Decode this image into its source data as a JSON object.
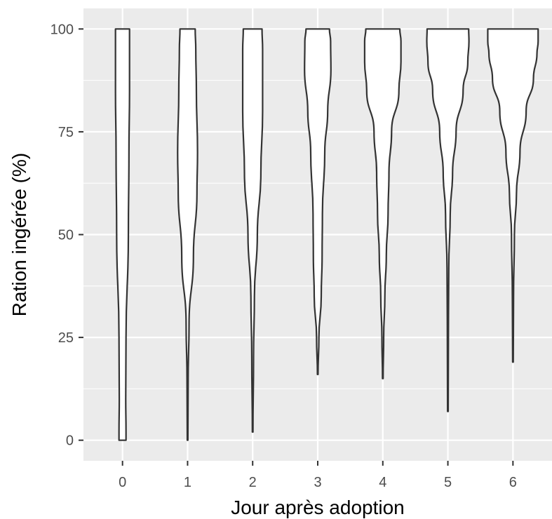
{
  "chart_data": {
    "type": "violin",
    "xlabel": "Jour après adoption",
    "ylabel": "Ration ingérée (%)",
    "categories": [
      "0",
      "1",
      "2",
      "3",
      "4",
      "5",
      "6"
    ],
    "ylim": [
      -5,
      105
    ],
    "yticks": [
      0,
      25,
      50,
      75,
      100
    ],
    "grid": true,
    "background": "#ebebeb",
    "grid_color": "#ffffff",
    "violin_fill": "#ffffff",
    "violin_stroke": "#333333",
    "violins": [
      {
        "category": "0",
        "min": 0,
        "max": 100,
        "profile": [
          [
            0,
            0.12
          ],
          [
            2,
            0.12
          ],
          [
            10,
            0.11
          ],
          [
            25,
            0.12
          ],
          [
            50,
            0.2
          ],
          [
            70,
            0.22
          ],
          [
            85,
            0.24
          ],
          [
            100,
            0.24
          ]
        ]
      },
      {
        "category": "1",
        "min": 0,
        "max": 100,
        "profile": [
          [
            0,
            0.01
          ],
          [
            15,
            0.02
          ],
          [
            28,
            0.05
          ],
          [
            45,
            0.2
          ],
          [
            60,
            0.32
          ],
          [
            70,
            0.34
          ],
          [
            85,
            0.3
          ],
          [
            95,
            0.28
          ],
          [
            100,
            0.26
          ]
        ]
      },
      {
        "category": "2",
        "min": 2,
        "max": 100,
        "profile": [
          [
            2,
            0.01
          ],
          [
            20,
            0.03
          ],
          [
            35,
            0.06
          ],
          [
            50,
            0.16
          ],
          [
            65,
            0.28
          ],
          [
            80,
            0.34
          ],
          [
            95,
            0.34
          ],
          [
            100,
            0.32
          ]
        ]
      },
      {
        "category": "3",
        "min": 16,
        "max": 100,
        "profile": [
          [
            16,
            0.01
          ],
          [
            25,
            0.04
          ],
          [
            35,
            0.12
          ],
          [
            45,
            0.15
          ],
          [
            55,
            0.16
          ],
          [
            70,
            0.24
          ],
          [
            80,
            0.34
          ],
          [
            90,
            0.45
          ],
          [
            97,
            0.44
          ],
          [
            100,
            0.4
          ]
        ]
      },
      {
        "category": "4",
        "min": 15,
        "max": 100,
        "profile": [
          [
            15,
            0.01
          ],
          [
            25,
            0.03
          ],
          [
            35,
            0.07
          ],
          [
            45,
            0.12
          ],
          [
            55,
            0.18
          ],
          [
            65,
            0.21
          ],
          [
            75,
            0.3
          ],
          [
            85,
            0.55
          ],
          [
            92,
            0.62
          ],
          [
            97,
            0.62
          ],
          [
            100,
            0.58
          ]
        ]
      },
      {
        "category": "5",
        "min": 7,
        "max": 100,
        "profile": [
          [
            7,
            0.01
          ],
          [
            30,
            0.02
          ],
          [
            42,
            0.03
          ],
          [
            55,
            0.08
          ],
          [
            65,
            0.16
          ],
          [
            75,
            0.28
          ],
          [
            85,
            0.52
          ],
          [
            92,
            0.68
          ],
          [
            97,
            0.72
          ],
          [
            100,
            0.71
          ]
        ]
      },
      {
        "category": "6",
        "min": 19,
        "max": 100,
        "profile": [
          [
            19,
            0.01
          ],
          [
            35,
            0.02
          ],
          [
            50,
            0.05
          ],
          [
            60,
            0.12
          ],
          [
            70,
            0.24
          ],
          [
            80,
            0.45
          ],
          [
            88,
            0.7
          ],
          [
            94,
            0.82
          ],
          [
            97,
            0.86
          ],
          [
            100,
            0.86
          ]
        ]
      }
    ]
  }
}
